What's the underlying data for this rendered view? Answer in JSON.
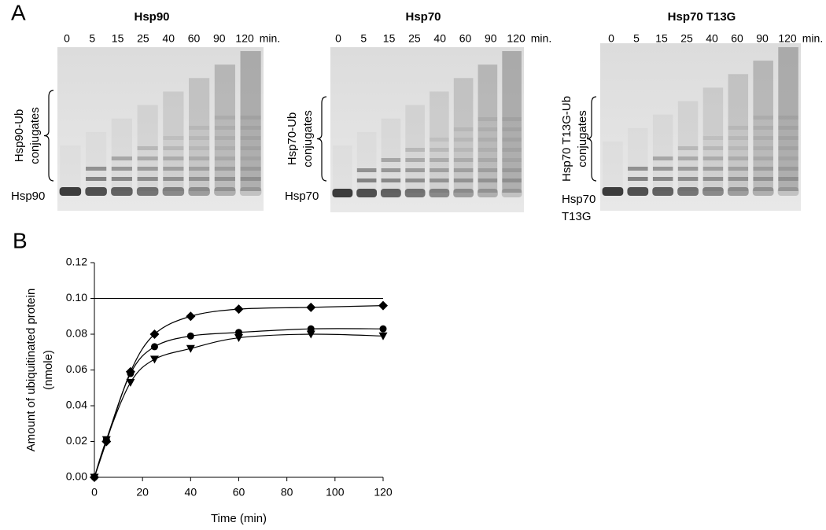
{
  "panel_a": {
    "label": "A",
    "unit": "min.",
    "gels": [
      {
        "title": "Hsp90",
        "lanes": [
          "0",
          "5",
          "15",
          "25",
          "40",
          "60",
          "90",
          "120"
        ],
        "bracket_label": [
          "Hsp90-Ub",
          "conjugates"
        ],
        "band_label": [
          "Hsp90"
        ]
      },
      {
        "title": "Hsp70",
        "lanes": [
          "0",
          "5",
          "15",
          "25",
          "40",
          "60",
          "90",
          "120"
        ],
        "bracket_label": [
          "Hsp70-Ub",
          "conjugates"
        ],
        "band_label": [
          "Hsp70"
        ]
      },
      {
        "title": "Hsp70 T13G",
        "lanes": [
          "0",
          "5",
          "15",
          "25",
          "40",
          "60",
          "90",
          "120"
        ],
        "bracket_label": [
          "Hsp70 T13G-Ub",
          "conjugates"
        ],
        "band_label": [
          "Hsp70",
          "T13G"
        ]
      }
    ]
  },
  "panel_b": {
    "label": "B",
    "chart_data": {
      "type": "scatter",
      "x_label": "Time (min)",
      "y_label": [
        "Amount of ubiquitinated protein",
        "(nmole)"
      ],
      "x": [
        0,
        5,
        15,
        25,
        40,
        60,
        90,
        120
      ],
      "series": [
        {
          "marker": "diamond",
          "color": "#000000",
          "values": [
            0,
            0.02,
            0.059,
            0.08,
            0.09,
            0.094,
            0.095,
            0.096
          ]
        },
        {
          "marker": "circle",
          "color": "#000000",
          "values": [
            0,
            0.021,
            0.058,
            0.073,
            0.079,
            0.081,
            0.083,
            0.083
          ]
        },
        {
          "marker": "triangle-down",
          "color": "#000000",
          "values": [
            0,
            0.021,
            0.053,
            0.066,
            0.072,
            0.078,
            0.08,
            0.079
          ]
        }
      ],
      "reference_line": 0.1,
      "xlim": [
        0,
        120
      ],
      "ylim": [
        0,
        0.12
      ],
      "xticks": [
        0,
        20,
        40,
        60,
        80,
        100,
        120
      ],
      "yticks": [
        {
          "value": 0,
          "label": "0.00"
        },
        {
          "value": 0.02,
          "label": "0.02"
        },
        {
          "value": 0.04,
          "label": "0.04"
        },
        {
          "value": 0.06,
          "label": "0.06"
        },
        {
          "value": 0.08,
          "label": "0.08"
        },
        {
          "value": 0.1,
          "label": "0.10"
        },
        {
          "value": 0.12,
          "label": "0.12"
        }
      ]
    }
  }
}
